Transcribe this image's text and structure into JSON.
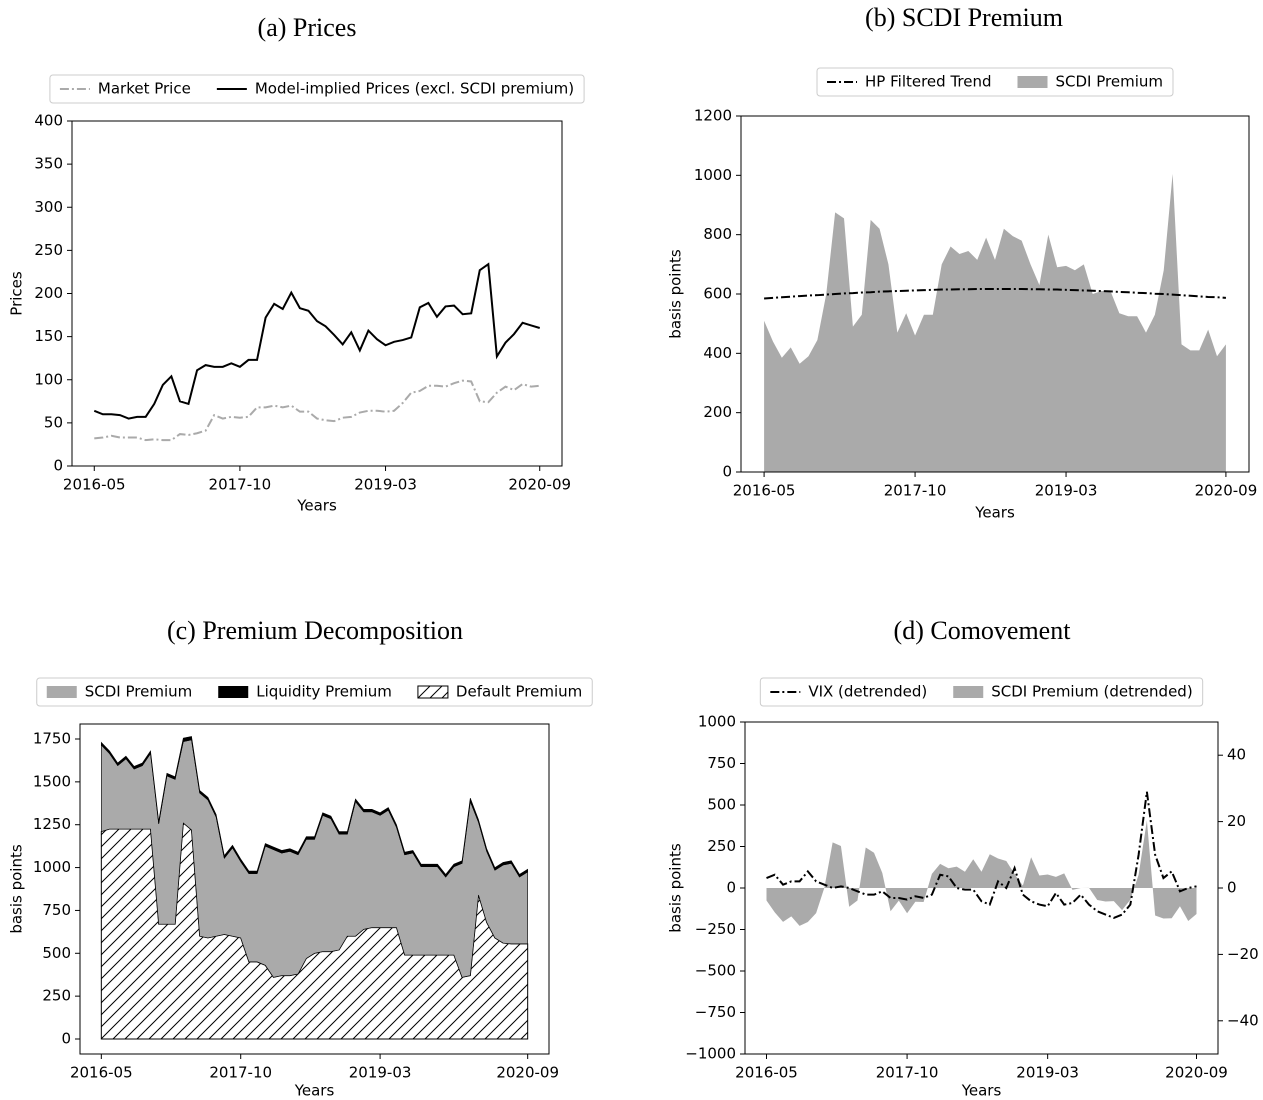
{
  "chart_data": [
    {
      "type": "line",
      "title": "(a) Prices",
      "x_label": "Years",
      "y_label": "Prices",
      "legend": "top",
      "x": [
        "2016-05",
        "2016-06",
        "2016-07",
        "2016-08",
        "2016-09",
        "2016-10",
        "2016-11",
        "2016-12",
        "2017-01",
        "2017-02",
        "2017-03",
        "2017-04",
        "2017-05",
        "2017-06",
        "2017-07",
        "2017-08",
        "2017-09",
        "2017-10",
        "2017-11",
        "2017-12",
        "2018-01",
        "2018-02",
        "2018-03",
        "2018-04",
        "2018-05",
        "2018-06",
        "2018-07",
        "2018-08",
        "2018-09",
        "2018-10",
        "2018-11",
        "2018-12",
        "2019-01",
        "2019-02",
        "2019-03",
        "2019-04",
        "2019-05",
        "2019-06",
        "2019-07",
        "2019-08",
        "2019-09",
        "2019-10",
        "2019-11",
        "2019-12",
        "2020-01",
        "2020-02",
        "2020-03",
        "2020-04",
        "2020-05",
        "2020-06",
        "2020-07",
        "2020-08",
        "2020-09"
      ],
      "xticks": [
        "2016-05",
        "2017-10",
        "2019-03",
        "2020-09"
      ],
      "ylim": [
        0,
        400
      ],
      "yticks": [
        0,
        50,
        100,
        150,
        200,
        250,
        300,
        350,
        400
      ],
      "series": [
        {
          "name": "Market Price",
          "type": "line",
          "color": "#aaaaaa",
          "dash": "dashdot",
          "values": [
            32,
            33,
            35,
            33,
            33,
            33,
            30,
            31,
            30,
            30,
            37,
            36,
            38,
            41,
            59,
            55,
            57,
            56,
            57,
            68,
            68,
            70,
            68,
            70,
            63,
            63,
            55,
            53,
            52,
            56,
            57,
            62,
            64,
            64,
            63,
            64,
            73,
            85,
            87,
            93,
            93,
            92,
            96,
            99,
            98,
            75,
            74,
            85,
            92,
            88,
            95,
            92,
            93
          ]
        },
        {
          "name": "Model-implied Prices (excl. SCDI premium)",
          "type": "line",
          "color": "#000000",
          "dash": "solid",
          "values": [
            64,
            60,
            60,
            59,
            55,
            57,
            57,
            72,
            94,
            104,
            75,
            72,
            111,
            117,
            115,
            115,
            119,
            115,
            123,
            123,
            172,
            188,
            182,
            201,
            183,
            180,
            168,
            162,
            152,
            141,
            155,
            134,
            157,
            147,
            140,
            144,
            146,
            149,
            184,
            189,
            173,
            185,
            186,
            176,
            177,
            227,
            234,
            127,
            143,
            153,
            166,
            163,
            160
          ]
        }
      ]
    },
    {
      "type": "area",
      "title": "(b) SCDI Premium",
      "x_label": "Years",
      "y_label": "basis points",
      "legend": "top",
      "x": [
        "2016-05",
        "2016-06",
        "2016-07",
        "2016-08",
        "2016-09",
        "2016-10",
        "2016-11",
        "2016-12",
        "2017-01",
        "2017-02",
        "2017-03",
        "2017-04",
        "2017-05",
        "2017-06",
        "2017-07",
        "2017-08",
        "2017-09",
        "2017-10",
        "2017-11",
        "2017-12",
        "2018-01",
        "2018-02",
        "2018-03",
        "2018-04",
        "2018-05",
        "2018-06",
        "2018-07",
        "2018-08",
        "2018-09",
        "2018-10",
        "2018-11",
        "2018-12",
        "2019-01",
        "2019-02",
        "2019-03",
        "2019-04",
        "2019-05",
        "2019-06",
        "2019-07",
        "2019-08",
        "2019-09",
        "2019-10",
        "2019-11",
        "2019-12",
        "2020-01",
        "2020-02",
        "2020-03",
        "2020-04",
        "2020-05",
        "2020-06",
        "2020-07",
        "2020-08",
        "2020-09"
      ],
      "xticks": [
        "2016-05",
        "2017-10",
        "2019-03",
        "2020-09"
      ],
      "ylim": [
        0,
        1200
      ],
      "yticks": [
        0,
        200,
        400,
        600,
        800,
        1000,
        1200
      ],
      "series": [
        {
          "name": "HP Filtered Trend",
          "type": "line",
          "color": "#000000",
          "dash": "dashdot",
          "values": [
            585,
            587,
            589,
            591,
            593,
            595,
            596,
            598,
            600,
            602,
            603,
            605,
            606,
            608,
            609,
            610,
            611,
            612,
            613,
            614,
            615,
            615,
            616,
            616,
            617,
            617,
            617,
            617,
            617,
            617,
            616,
            616,
            615,
            615,
            614,
            613,
            612,
            611,
            610,
            609,
            607,
            606,
            604,
            603,
            601,
            600,
            598,
            596,
            594,
            592,
            590,
            589,
            587
          ]
        },
        {
          "name": "SCDI Premium",
          "type": "area",
          "color": "#aaaaaa",
          "values": [
            510,
            440,
            385,
            420,
            365,
            390,
            445,
            600,
            875,
            855,
            490,
            530,
            850,
            820,
            700,
            470,
            535,
            460,
            530,
            530,
            700,
            760,
            735,
            745,
            715,
            790,
            715,
            820,
            795,
            780,
            700,
            630,
            800,
            690,
            695,
            680,
            700,
            600,
            610,
            610,
            535,
            525,
            525,
            470,
            530,
            680,
            1005,
            430,
            410,
            410,
            480,
            390,
            430
          ]
        }
      ]
    },
    {
      "type": "stacked_area",
      "title": "(c) Premium Decomposition",
      "x_label": "Years",
      "y_label": "basis points",
      "legend": "top",
      "legend_order": [
        1,
        2,
        0
      ],
      "x": [
        "2016-05",
        "2016-06",
        "2016-07",
        "2016-08",
        "2016-09",
        "2016-10",
        "2016-11",
        "2016-12",
        "2017-01",
        "2017-02",
        "2017-03",
        "2017-04",
        "2017-05",
        "2017-06",
        "2017-07",
        "2017-08",
        "2017-09",
        "2017-10",
        "2017-11",
        "2017-12",
        "2018-01",
        "2018-02",
        "2018-03",
        "2018-04",
        "2018-05",
        "2018-06",
        "2018-07",
        "2018-08",
        "2018-09",
        "2018-10",
        "2018-11",
        "2018-12",
        "2019-01",
        "2019-02",
        "2019-03",
        "2019-04",
        "2019-05",
        "2019-06",
        "2019-07",
        "2019-08",
        "2019-09",
        "2019-10",
        "2019-11",
        "2019-12",
        "2020-01",
        "2020-02",
        "2020-03",
        "2020-04",
        "2020-05",
        "2020-06",
        "2020-07",
        "2020-08",
        "2020-09"
      ],
      "xticks": [
        "2016-05",
        "2017-10",
        "2019-03",
        "2020-09"
      ],
      "ylim": [
        -87.5,
        1837.5
      ],
      "yticks": [
        0,
        250,
        500,
        750,
        1000,
        1250,
        1500,
        1750
      ],
      "series": [
        {
          "name": "Default Premium",
          "type": "area",
          "color": "#ffffff",
          "hatch": "//",
          "values": [
            1210,
            1225,
            1225,
            1225,
            1225,
            1225,
            1225,
            670,
            670,
            670,
            1260,
            1220,
            600,
            590,
            600,
            610,
            600,
            590,
            450,
            450,
            430,
            360,
            370,
            370,
            380,
            470,
            500,
            510,
            510,
            520,
            600,
            600,
            640,
            650,
            650,
            650,
            650,
            490,
            490,
            490,
            490,
            490,
            490,
            490,
            360,
            370,
            840,
            680,
            590,
            560,
            555,
            555,
            555
          ]
        },
        {
          "name": "SCDI Premium",
          "type": "area",
          "color": "#aaaaaa",
          "values": [
            505,
            440,
            370,
            410,
            350,
            370,
            440,
            585,
            865,
            845,
            475,
            525,
            835,
            805,
            695,
            445,
            515,
            445,
            515,
            515,
            695,
            745,
            715,
            725,
            695,
            695,
            665,
            795,
            775,
            675,
            595,
            785,
            685,
            675,
            655,
            685,
            585,
            585,
            595,
            515,
            515,
            515,
            455,
            515,
            665,
            1015,
            425,
            415,
            395,
            455,
            470,
            390,
            420
          ]
        },
        {
          "name": "Liquidity Premium",
          "type": "area",
          "color": "#000000",
          "values": [
            15,
            15,
            15,
            15,
            15,
            15,
            15,
            15,
            15,
            15,
            20,
            20,
            15,
            15,
            15,
            15,
            15,
            15,
            15,
            15,
            15,
            15,
            15,
            15,
            15,
            15,
            15,
            15,
            15,
            15,
            15,
            15,
            15,
            15,
            15,
            15,
            15,
            15,
            15,
            15,
            15,
            15,
            15,
            15,
            15,
            20,
            15,
            15,
            15,
            15,
            15,
            15,
            15
          ]
        }
      ]
    },
    {
      "type": "area",
      "title": "(d) Comovement",
      "x_label": "Years",
      "y_label": "basis points",
      "legend": "top",
      "x": [
        "2016-05",
        "2016-06",
        "2016-07",
        "2016-08",
        "2016-09",
        "2016-10",
        "2016-11",
        "2016-12",
        "2017-01",
        "2017-02",
        "2017-03",
        "2017-04",
        "2017-05",
        "2017-06",
        "2017-07",
        "2017-08",
        "2017-09",
        "2017-10",
        "2017-11",
        "2017-12",
        "2018-01",
        "2018-02",
        "2018-03",
        "2018-04",
        "2018-05",
        "2018-06",
        "2018-07",
        "2018-08",
        "2018-09",
        "2018-10",
        "2018-11",
        "2018-12",
        "2019-01",
        "2019-02",
        "2019-03",
        "2019-04",
        "2019-05",
        "2019-06",
        "2019-07",
        "2019-08",
        "2019-09",
        "2019-10",
        "2019-11",
        "2019-12",
        "2020-01",
        "2020-02",
        "2020-03",
        "2020-04",
        "2020-05",
        "2020-06",
        "2020-07",
        "2020-08",
        "2020-09"
      ],
      "xticks": [
        "2016-05",
        "2017-10",
        "2019-03",
        "2020-09"
      ],
      "ylim": [
        -1000,
        1000
      ],
      "yticks": [
        {
          "value": -1000,
          "label": "−1000"
        },
        {
          "value": -750,
          "label": "−750"
        },
        {
          "value": -500,
          "label": "−500"
        },
        {
          "value": -250,
          "label": "−250"
        },
        0,
        250,
        500,
        750,
        1000
      ],
      "y2lim": [
        -50,
        50
      ],
      "y2ticks": [
        {
          "value": -40,
          "label": "−40"
        },
        {
          "value": -20,
          "label": "−20"
        },
        0,
        20,
        40
      ],
      "series": [
        {
          "name": "VIX (detrended)",
          "type": "line",
          "color": "#000000",
          "dash": "dashdot",
          "axis": "y2",
          "values": [
            3,
            4,
            1,
            2,
            2,
            5,
            2,
            1,
            0,
            0.5,
            0,
            -1,
            -2,
            -2,
            -1,
            -3,
            -3,
            -3.5,
            -2.5,
            -3,
            -2,
            4,
            3.5,
            0,
            -0.5,
            -0.5,
            -4,
            -5,
            2,
            0,
            6,
            -2,
            -4,
            -5,
            -5.5,
            -1.5,
            -5,
            -4.5,
            -2,
            -5,
            -7,
            -8,
            -9,
            -8,
            -5,
            10,
            29,
            10,
            3,
            5,
            -1,
            0,
            0.5
          ]
        },
        {
          "name": "SCDI Premium (detrended)",
          "type": "area",
          "color": "#aaaaaa",
          "values": [
            -75,
            -147,
            -204,
            -171,
            -228,
            -205,
            -151,
            2,
            275,
            253,
            -113,
            -75,
            244,
            212,
            91,
            -140,
            -76,
            -152,
            -83,
            -84,
            85,
            145,
            119,
            129,
            98,
            173,
            98,
            203,
            178,
            163,
            84,
            14,
            185,
            75,
            81,
            67,
            88,
            -11,
            0,
            1,
            -72,
            -81,
            -79,
            -133,
            -71,
            80,
            407,
            -166,
            -184,
            -182,
            -110,
            -199,
            -157
          ]
        }
      ]
    }
  ]
}
